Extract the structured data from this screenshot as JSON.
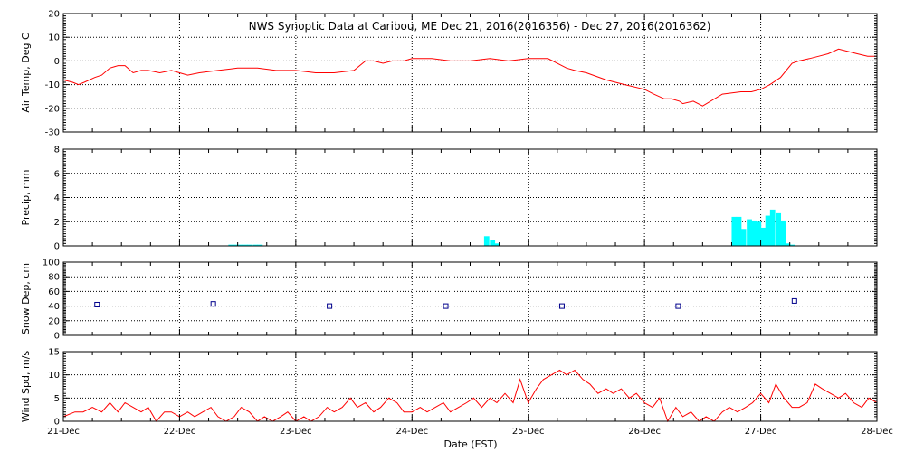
{
  "chart_data": {
    "type": "line",
    "title": "NWS Synoptic Data at Caribou, ME    Dec 21, 2016(2016356) - Dec 27, 2016(2016362)",
    "xlabel": "Date (EST)",
    "x_range_days": [
      0,
      7
    ],
    "x_tick_labels": [
      "21-Dec",
      "22-Dec",
      "23-Dec",
      "24-Dec",
      "25-Dec",
      "26-Dec",
      "27-Dec",
      "28-Dec"
    ],
    "colors": {
      "line": "#ff0000",
      "precip": "#00ffff",
      "snow": "#00008b",
      "axis": "#000000",
      "grid": "#000000"
    },
    "panels": [
      {
        "id": "air-temp",
        "type": "line",
        "ylabel": "Air Temp, Deg C",
        "ylim": [
          -30,
          20
        ],
        "yticks": [
          -30,
          -20,
          -10,
          0,
          10,
          20
        ],
        "grid": true,
        "series": [
          {
            "x": [
              0.0,
              0.08,
              0.13,
              0.18,
              0.27,
              0.33,
              0.4,
              0.47,
              0.53,
              0.6,
              0.67,
              0.73,
              0.83,
              0.93,
              1.0,
              1.07,
              1.17,
              1.33,
              1.5,
              1.67,
              1.83,
              2.0,
              2.17,
              2.33,
              2.5,
              2.6,
              2.67,
              2.75,
              2.83,
              2.93,
              3.0,
              3.17,
              3.33,
              3.5,
              3.67,
              3.83,
              4.0,
              4.17,
              4.33,
              4.4,
              4.5,
              4.67,
              4.83,
              5.0,
              5.08,
              5.17,
              5.23,
              5.3,
              5.33,
              5.42,
              5.5,
              5.67,
              5.83,
              5.92,
              6.0,
              6.08,
              6.17,
              6.27,
              6.33,
              6.42,
              6.5,
              6.58,
              6.67,
              6.75,
              6.83,
              6.92,
              7.0
            ],
            "y": [
              -8,
              -9,
              -10,
              -9,
              -7,
              -6,
              -3,
              -2,
              -2,
              -5,
              -4,
              -4,
              -5,
              -4,
              -5,
              -6,
              -5,
              -4,
              -3,
              -3,
              -4,
              -4,
              -5,
              -5,
              -4,
              0,
              0,
              -1,
              0,
              0,
              1,
              1,
              0,
              0,
              1,
              0,
              1,
              1,
              -3,
              -4,
              -5,
              -8,
              -10,
              -12,
              -14,
              -16,
              -16,
              -17,
              -18,
              -17,
              -19,
              -14,
              -13,
              -13,
              -12,
              -10,
              -7,
              -1,
              0,
              1,
              2,
              3,
              5,
              4,
              3,
              2,
              2
            ]
          }
        ]
      },
      {
        "id": "precip",
        "type": "bar",
        "ylabel": "Precip, mm",
        "ylim": [
          0,
          8
        ],
        "yticks": [
          0,
          2,
          4,
          6,
          8
        ],
        "grid": true,
        "bar_width_days": 0.0417,
        "series": [
          {
            "x": [
              1.42,
              1.46,
              1.5,
              1.54,
              1.58,
              1.63,
              1.67,
              3.62,
              3.67,
              3.71,
              5.75,
              5.79,
              5.83,
              5.88,
              5.92,
              5.96,
              6.0,
              6.04,
              6.08,
              6.13,
              6.17,
              6.21,
              6.25
            ],
            "values": [
              0.1,
              0.1,
              0.1,
              0.1,
              0.1,
              0.1,
              0.1,
              0.8,
              0.5,
              0.2,
              2.4,
              2.4,
              1.4,
              2.2,
              2.1,
              2.0,
              1.5,
              2.5,
              3.0,
              2.7,
              2.1,
              0.2,
              0.1
            ]
          }
        ]
      },
      {
        "id": "snow-depth",
        "type": "scatter",
        "ylabel": "Snow Dep, cm",
        "ylim": [
          0,
          100
        ],
        "yticks": [
          0,
          20,
          40,
          60,
          80,
          100
        ],
        "grid": true,
        "series": [
          {
            "x": [
              0.29,
              1.29,
              2.29,
              3.29,
              4.29,
              5.29,
              6.29
            ],
            "values": [
              42,
              43,
              40,
              40,
              40,
              40,
              47
            ]
          }
        ]
      },
      {
        "id": "wind-speed",
        "type": "line",
        "ylabel": "Wind Spd, m/s",
        "ylim": [
          0,
          15
        ],
        "yticks": [
          0,
          5,
          10,
          15
        ],
        "grid": true,
        "series": [
          {
            "x": [
              0.0,
              0.1,
              0.17,
              0.25,
              0.33,
              0.4,
              0.47,
              0.53,
              0.6,
              0.67,
              0.73,
              0.8,
              0.87,
              0.93,
              1.0,
              1.07,
              1.13,
              1.2,
              1.27,
              1.33,
              1.4,
              1.47,
              1.53,
              1.6,
              1.67,
              1.73,
              1.8,
              1.87,
              1.93,
              2.0,
              2.07,
              2.13,
              2.2,
              2.27,
              2.33,
              2.4,
              2.47,
              2.53,
              2.6,
              2.67,
              2.73,
              2.8,
              2.87,
              2.93,
              3.0,
              3.07,
              3.13,
              3.2,
              3.27,
              3.33,
              3.4,
              3.47,
              3.53,
              3.6,
              3.67,
              3.73,
              3.8,
              3.87,
              3.93,
              4.0,
              4.07,
              4.13,
              4.2,
              4.27,
              4.33,
              4.4,
              4.47,
              4.53,
              4.6,
              4.67,
              4.73,
              4.8,
              4.87,
              4.93,
              5.0,
              5.07,
              5.13,
              5.2,
              5.27,
              5.33,
              5.4,
              5.47,
              5.53,
              5.6,
              5.67,
              5.73,
              5.8,
              5.87,
              5.93,
              6.0,
              6.07,
              6.13,
              6.2,
              6.27,
              6.33,
              6.4,
              6.47,
              6.53,
              6.6,
              6.67,
              6.73,
              6.8,
              6.87,
              6.93,
              7.0
            ],
            "y": [
              1,
              2,
              2,
              3,
              2,
              4,
              2,
              4,
              3,
              2,
              3,
              0,
              2,
              2,
              1,
              2,
              1,
              2,
              3,
              1,
              0,
              1,
              3,
              2,
              0,
              1,
              0,
              1,
              2,
              0,
              1,
              0,
              1,
              3,
              2,
              3,
              5,
              3,
              4,
              2,
              3,
              5,
              4,
              2,
              2,
              3,
              2,
              3,
              4,
              2,
              3,
              4,
              5,
              3,
              5,
              4,
              6,
              4,
              9,
              4,
              7,
              9,
              10,
              11,
              10,
              11,
              9,
              8,
              6,
              7,
              6,
              7,
              5,
              6,
              4,
              3,
              5,
              0,
              3,
              1,
              2,
              0,
              1,
              0,
              2,
              3,
              2,
              3,
              4,
              6,
              4,
              8,
              5,
              3,
              3,
              4,
              8,
              7,
              6,
              5,
              6,
              4,
              3,
              5,
              4
            ]
          }
        ]
      }
    ]
  }
}
